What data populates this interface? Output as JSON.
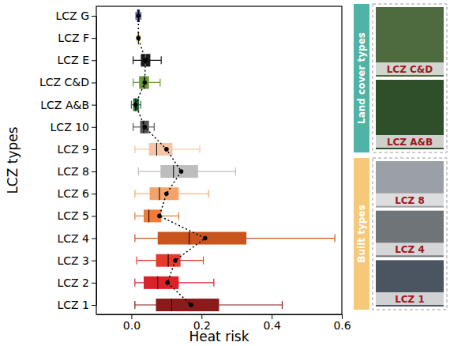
{
  "chart_data": {
    "type": "box",
    "orientation": "horizontal",
    "x_label": "Heat risk",
    "y_label": "LCZ types",
    "categories": [
      "LCZ G",
      "LCZ F",
      "LCZ E",
      "LCZ C&D",
      "LCZ A&B",
      "LCZ 10",
      "LCZ 9",
      "LCZ 8",
      "LCZ 6",
      "LCZ 5",
      "LCZ 4",
      "LCZ 3",
      "LCZ 2",
      "LCZ 1"
    ],
    "whisker_low": [
      0.013,
      0.015,
      0.005,
      0.005,
      0.0,
      0.005,
      0.01,
      0.02,
      0.01,
      0.01,
      0.01,
      0.015,
      0.01,
      0.01
    ],
    "q1": [
      0.016,
      0.017,
      0.027,
      0.022,
      0.005,
      0.025,
      0.05,
      0.083,
      0.052,
      0.035,
      0.075,
      0.07,
      0.035,
      0.07
    ],
    "median": [
      0.02,
      0.02,
      0.04,
      0.037,
      0.012,
      0.035,
      0.072,
      0.12,
      0.08,
      0.05,
      0.165,
      0.105,
      0.075,
      0.115
    ],
    "q3": [
      0.024,
      0.023,
      0.054,
      0.05,
      0.022,
      0.05,
      0.117,
      0.19,
      0.135,
      0.085,
      0.328,
      0.14,
      0.135,
      0.25
    ],
    "whisker_high": [
      0.027,
      0.025,
      0.085,
      0.082,
      0.027,
      0.065,
      0.195,
      0.297,
      0.22,
      0.135,
      0.58,
      0.205,
      0.235,
      0.43
    ],
    "mean": [
      0.02,
      0.02,
      0.04,
      0.038,
      0.012,
      0.038,
      0.1,
      0.142,
      0.1,
      0.08,
      0.21,
      0.125,
      0.103,
      0.17
    ],
    "colors": [
      "#2b2f8a",
      "#f2e68a",
      "#1a1a1a",
      "#6a9a3a",
      "#2e6b3a",
      "#555555",
      "#f5c6a5",
      "#bdbdbd",
      "#f4a46a",
      "#f07b3a",
      "#c8551e",
      "#e63a2e",
      "#d9232a",
      "#8b1a1a"
    ],
    "marker": "circle",
    "line_style": "dotted",
    "grid": false,
    "xlim": [
      -0.1,
      0.6
    ],
    "xticks": [
      {
        "value": 0,
        "label": "0.0"
      },
      0.2,
      0.4,
      0.6
    ]
  },
  "image_panel": [
    {
      "label": "Land cover types",
      "images": [
        "LCZ C&D",
        "LCZ A&B"
      ]
    },
    {
      "label": "Built types",
      "images": [
        "LCZ 8",
        "LCZ 4",
        "LCZ 1"
      ]
    }
  ]
}
